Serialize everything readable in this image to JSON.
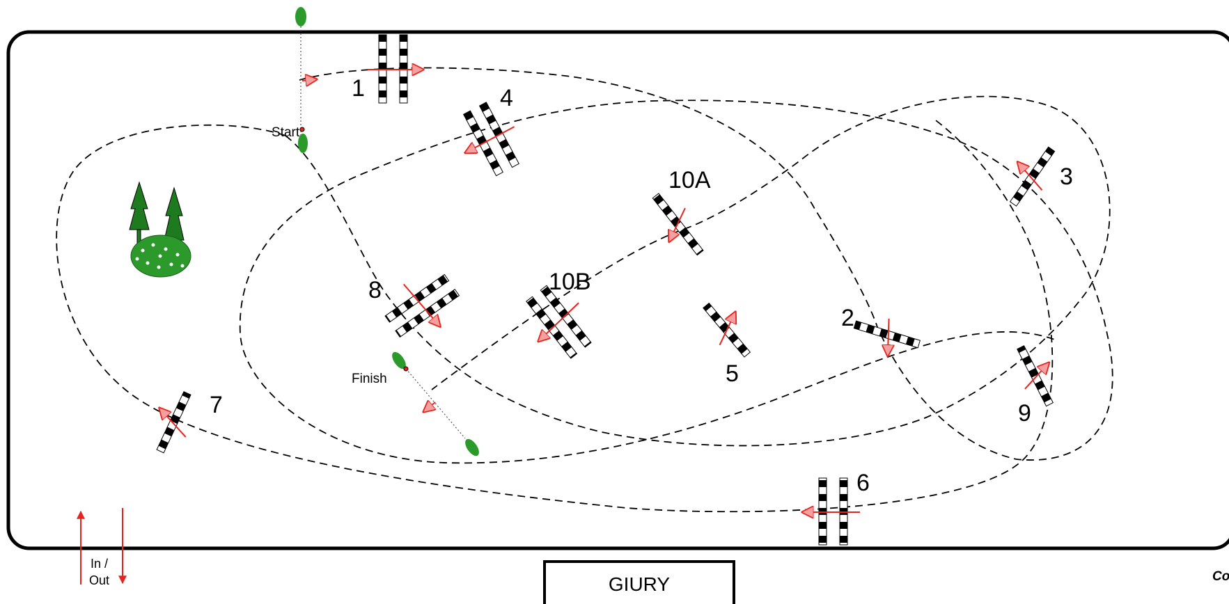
{
  "start_label": "Start",
  "finish_label": "Finish",
  "in_out_label": [
    "In /",
    "Out"
  ],
  "jury_label": "GIURY",
  "corner_text": "Co",
  "obstacles": [
    "1",
    "2",
    "3",
    "4",
    "5",
    "6",
    "7",
    "8",
    "9",
    "10A",
    "10B"
  ],
  "colors": {
    "direction_arrow": "#e8231c",
    "tree": "#1e7a1e",
    "bush": "#2b9a2b",
    "pole_dark": "#000000"
  }
}
